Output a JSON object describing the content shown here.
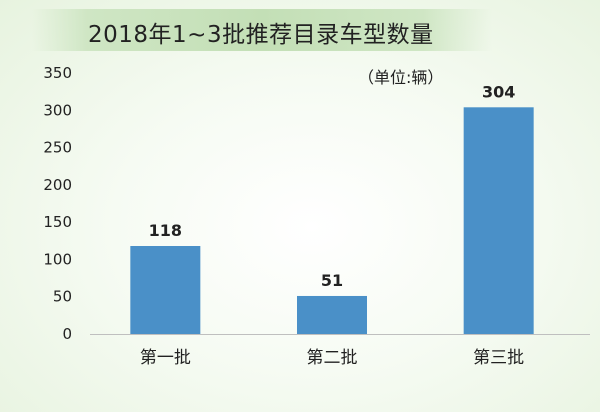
{
  "chart_data": {
    "type": "bar",
    "title": "2018年1~3批推荐目录车型数量",
    "unit_note": "（单位:辆）",
    "categories": [
      "第一批",
      "第二批",
      "第三批"
    ],
    "values": [
      118,
      51,
      304
    ],
    "data_labels": [
      "118",
      "51",
      "304"
    ],
    "y_ticks": [
      "0",
      "50",
      "100",
      "150",
      "200",
      "250",
      "300",
      "350"
    ],
    "ylim": [
      0,
      350
    ],
    "xlabel": "",
    "ylabel": "",
    "grid": false,
    "legend": "none",
    "bar_color": "#4a90c8"
  }
}
